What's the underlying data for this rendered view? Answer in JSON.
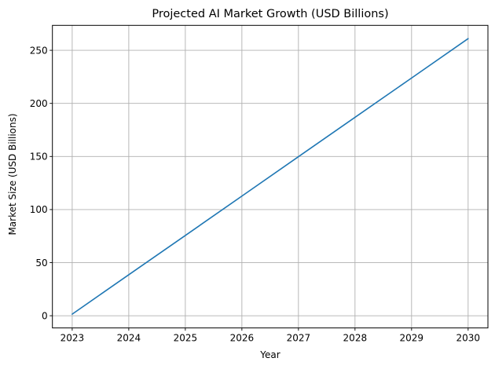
{
  "chart_data": {
    "type": "line",
    "title": "Projected AI Market Growth (USD Billions)",
    "xlabel": "Year",
    "ylabel": "Market Size (USD Billions)",
    "x": [
      2023,
      2024,
      2025,
      2026,
      2027,
      2028,
      2029,
      2030
    ],
    "series": [
      {
        "name": "Market Size",
        "color": "#1f77b4",
        "values": [
          1.5,
          38.6,
          75.6,
          112.7,
          149.8,
          186.9,
          223.9,
          261.0
        ]
      }
    ],
    "xticks": [
      "2023",
      "2024",
      "2025",
      "2026",
      "2027",
      "2028",
      "2029",
      "2030"
    ],
    "yticks": [
      "0",
      "50",
      "100",
      "150",
      "200",
      "250"
    ],
    "ytick_values": [
      0,
      50,
      100,
      150,
      200,
      250
    ],
    "xlim": [
      2022.65,
      2030.35
    ],
    "ylim": [
      -11.5,
      273.5
    ],
    "grid": true,
    "legend": null
  }
}
